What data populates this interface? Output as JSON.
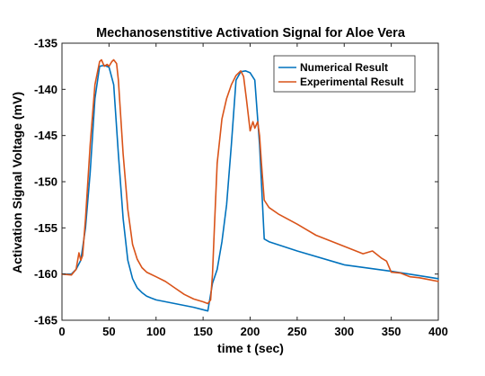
{
  "chart_data": {
    "type": "line",
    "title": "Mechanosenstitive Activation Signal for Aloe Vera",
    "xlabel": "time t (sec)",
    "ylabel": "Activation Signal Voltage (mV)",
    "xlim": [
      0,
      400
    ],
    "ylim": [
      -165,
      -135
    ],
    "xticks": [
      0,
      50,
      100,
      150,
      200,
      250,
      300,
      350,
      400
    ],
    "yticks": [
      -135,
      -140,
      -145,
      -150,
      -155,
      -160,
      -165
    ],
    "grid": false,
    "legend_position": "top-right",
    "series": [
      {
        "name": "Numerical Result",
        "color": "#0072BD",
        "x": [
          0,
          10,
          15,
          20,
          25,
          30,
          35,
          40,
          45,
          50,
          55,
          60,
          65,
          70,
          75,
          80,
          85,
          90,
          95,
          100,
          120,
          140,
          155,
          160,
          165,
          170,
          175,
          180,
          185,
          190,
          195,
          200,
          205,
          210,
          215,
          220,
          250,
          300,
          350,
          400
        ],
        "y": [
          -160,
          -160,
          -159.5,
          -158.5,
          -155,
          -149,
          -141,
          -137.5,
          -137.4,
          -137.6,
          -139.5,
          -147,
          -154,
          -158.5,
          -160.5,
          -161.5,
          -162,
          -162.4,
          -162.6,
          -162.8,
          -163.2,
          -163.6,
          -164,
          -161,
          -159.5,
          -156.5,
          -152.5,
          -146,
          -139,
          -138.1,
          -138,
          -138.2,
          -139,
          -146,
          -156.2,
          -156.5,
          -157.5,
          -159,
          -159.7,
          -160.5
        ]
      },
      {
        "name": "Experimental Result",
        "color": "#D95319",
        "x": [
          0,
          10,
          15,
          18,
          20,
          22,
          25,
          30,
          35,
          40,
          42,
          45,
          48,
          50,
          53,
          55,
          58,
          60,
          65,
          70,
          75,
          80,
          85,
          90,
          100,
          110,
          120,
          130,
          140,
          150,
          155,
          158,
          160,
          162,
          165,
          170,
          175,
          180,
          185,
          190,
          193,
          196,
          200,
          203,
          205,
          208,
          210,
          212,
          215,
          220,
          230,
          250,
          270,
          290,
          300,
          320,
          330,
          340,
          345,
          350,
          360,
          370,
          380,
          390,
          400
        ],
        "y": [
          -160,
          -160.1,
          -159.5,
          -157.7,
          -158.5,
          -158,
          -154,
          -146,
          -139.5,
          -137,
          -136.8,
          -137.5,
          -137.3,
          -137.5,
          -137,
          -136.8,
          -137.2,
          -139,
          -147,
          -153,
          -156.8,
          -158.4,
          -159.3,
          -159.8,
          -160.3,
          -160.8,
          -161.5,
          -162.2,
          -162.7,
          -163,
          -163.2,
          -162.8,
          -160,
          -155,
          -148,
          -143.2,
          -141,
          -139.5,
          -138.5,
          -138,
          -138.6,
          -141,
          -144.5,
          -143.5,
          -144.2,
          -143.5,
          -145,
          -148,
          -152,
          -152.8,
          -153.5,
          -154.6,
          -155.8,
          -156.6,
          -157,
          -157.8,
          -157.5,
          -158.3,
          -158.6,
          -159.8,
          -159.9,
          -160.3,
          -160.4,
          -160.6,
          -160.8
        ]
      }
    ]
  }
}
